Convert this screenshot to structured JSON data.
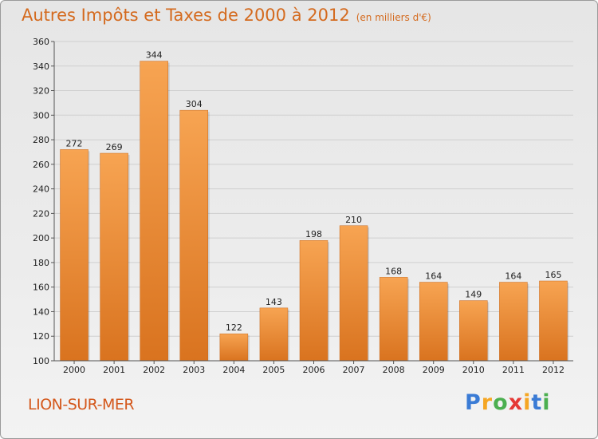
{
  "header": {
    "title": "Autres Impôts et Taxes de 2000 à 2012",
    "subtitle": "(en milliers d'€)"
  },
  "footer": {
    "city": "LION-SUR-MER",
    "logo_letters": [
      "P",
      "r",
      "o",
      "x",
      "i",
      "t",
      "i"
    ],
    "logo_colors": [
      "#3a7bd5",
      "#f5a623",
      "#4caf50",
      "#e53935",
      "#f5a623",
      "#3a7bd5",
      "#4caf50"
    ]
  },
  "colors": {
    "bar_top": "#f7a452",
    "bar_bottom": "#d9731f",
    "title": "#d46a1e"
  },
  "chart_data": {
    "type": "bar",
    "categories": [
      "2000",
      "2001",
      "2002",
      "2003",
      "2004",
      "2005",
      "2006",
      "2007",
      "2008",
      "2009",
      "2010",
      "2011",
      "2012"
    ],
    "values": [
      272,
      269,
      344,
      304,
      122,
      143,
      198,
      210,
      168,
      164,
      149,
      164,
      165
    ],
    "ylim": [
      100,
      360
    ],
    "yticks": [
      100,
      120,
      140,
      160,
      180,
      200,
      220,
      240,
      260,
      280,
      300,
      320,
      340,
      360
    ],
    "grid": true
  }
}
